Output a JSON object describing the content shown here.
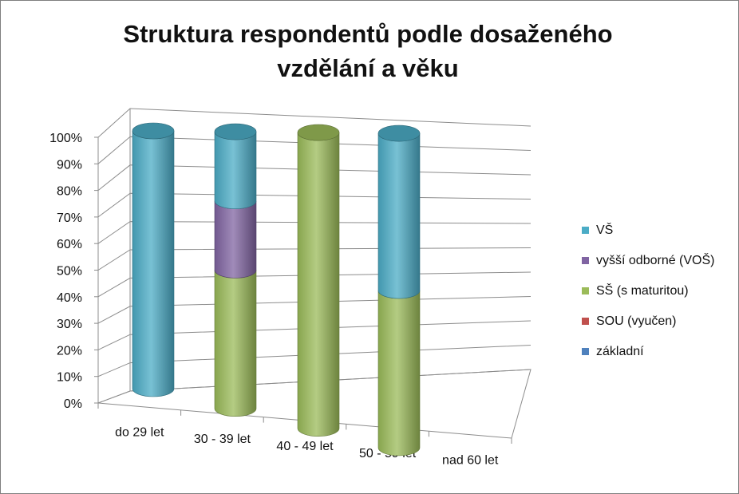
{
  "chart_data": {
    "type": "bar",
    "stacked": true,
    "style": "3d-cylinder",
    "title": "Struktura respondentů podle dosaženého\nvzdělání a věku",
    "categories": [
      "do 29 let",
      "30 - 39 let",
      "40 - 49 let",
      "50 - 59 let",
      "nad 60 let"
    ],
    "ylim": [
      0,
      100
    ],
    "y_ticks": [
      "0%",
      "10%",
      "20%",
      "30%",
      "40%",
      "50%",
      "60%",
      "70%",
      "80%",
      "90%",
      "100%"
    ],
    "y_tick_values": [
      0,
      10,
      20,
      30,
      40,
      50,
      60,
      70,
      80,
      90,
      100
    ],
    "grid": true,
    "legend_position": "right",
    "series": [
      {
        "name": "základní",
        "color": "#4f81bd",
        "values": [
          0,
          0,
          0,
          0,
          0
        ]
      },
      {
        "name": "SOU (vyučen)",
        "color": "#c0504d",
        "values": [
          0,
          0,
          0,
          0,
          0
        ]
      },
      {
        "name": "SŠ (s maturitou)",
        "color": "#9bbb59",
        "values": [
          0,
          50,
          100,
          50,
          0
        ]
      },
      {
        "name": "vyšší odborné (VOŠ)",
        "color": "#8064a2",
        "values": [
          0,
          25,
          0,
          0,
          0
        ]
      },
      {
        "name": "VŠ",
        "color": "#4bacc6",
        "values": [
          100,
          25,
          0,
          50,
          0
        ]
      }
    ]
  }
}
